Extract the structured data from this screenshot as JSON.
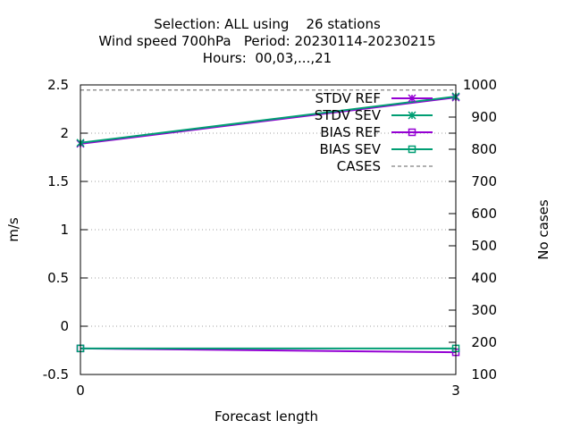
{
  "chart_data": {
    "type": "line",
    "title_lines": [
      "Selection: ALL using    26 stations",
      "Wind speed 700hPa   Period: 20230114-20230215",
      "Hours:  00,03,...,21"
    ],
    "xlabel": "Forecast length",
    "ylabel": "m/s",
    "y2label": "No cases",
    "x": [
      0,
      3
    ],
    "xlim": [
      0,
      3
    ],
    "ylim": [
      -0.5,
      2.5
    ],
    "y2lim": [
      100,
      1000
    ],
    "xticks": [
      "0",
      "3"
    ],
    "yticks": [
      "-0.5",
      "0",
      "0.5",
      "1",
      "1.5",
      "2",
      "2.5"
    ],
    "y2ticks": [
      "100",
      "200",
      "300",
      "400",
      "500",
      "600",
      "700",
      "800",
      "900",
      "1000"
    ],
    "grid": true,
    "legend_position": "top-right",
    "series": [
      {
        "name": "STDV REF",
        "axis": "y",
        "values": [
          1.89,
          2.37
        ],
        "color": "#9400d3",
        "marker": "x-star",
        "dash": false
      },
      {
        "name": "STDV SEV",
        "axis": "y",
        "values": [
          1.9,
          2.38
        ],
        "color": "#009e73",
        "marker": "x-star",
        "dash": false
      },
      {
        "name": "BIAS REF",
        "axis": "y",
        "values": [
          -0.23,
          -0.27
        ],
        "color": "#9400d3",
        "marker": "square",
        "dash": false
      },
      {
        "name": "BIAS SEV",
        "axis": "y",
        "values": [
          -0.23,
          -0.23
        ],
        "color": "#009e73",
        "marker": "square",
        "dash": false
      },
      {
        "name": "CASES",
        "axis": "y2",
        "values": [
          984,
          984
        ],
        "color": "#808080",
        "marker": "none",
        "dash": true
      }
    ]
  }
}
